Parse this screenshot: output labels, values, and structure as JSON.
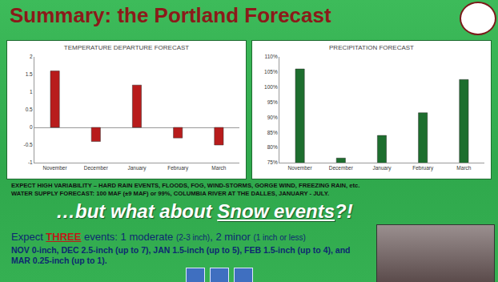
{
  "title": "Summary: the Portland Forecast",
  "chart_data": [
    {
      "type": "bar",
      "title": "TEMPERATURE DEPARTURE FORECAST",
      "categories": [
        "November",
        "December",
        "January",
        "February",
        "March"
      ],
      "values": [
        1.6,
        -0.4,
        1.2,
        -0.3,
        -0.5
      ],
      "color": "#b81c1c",
      "ylim": [
        -1,
        2
      ],
      "yticks": [
        -1,
        -0.5,
        0,
        0.5,
        1,
        1.5,
        2
      ],
      "grid": false
    },
    {
      "type": "bar",
      "title": "PRECIPITATION FORECAST",
      "categories": [
        "November",
        "December",
        "January",
        "February",
        "March"
      ],
      "values": [
        106,
        76.5,
        84,
        91.5,
        102.5
      ],
      "color": "#1d6e2e",
      "ylim": [
        75,
        110
      ],
      "yticks": [
        {
          "value": 75,
          "label": "75%"
        },
        {
          "value": 80,
          "label": "80%"
        },
        {
          "value": 85,
          "label": "85%"
        },
        {
          "value": 90,
          "label": "90%"
        },
        {
          "value": 95,
          "label": "95%"
        },
        {
          "value": 100,
          "label": "100%"
        },
        {
          "value": 105,
          "label": "105%"
        },
        {
          "value": 110,
          "label": "110%"
        }
      ],
      "grid": false
    }
  ],
  "notes": [
    "EXPECT HIGH VARIABILITY – HARD RAIN EVENTS, FLOODS, FOG, WIND-STORMS, GORGE WIND, FREEZING RAIN, etc.",
    "WATER SUPPLY FORECAST: 100 MAF (±9 MAF) or 99%, COLUMBIA RIVER AT THE DALLES, JANUARY - JULY."
  ],
  "headline": [
    "…but what about ",
    "Snow events",
    "?!"
  ],
  "expect": [
    "Expect ",
    "THREE",
    " events: 1 moderate ",
    "(2-3 inch)",
    ", 2 minor ",
    "(1 inch or less)"
  ],
  "detail": "NOV 0-inch, DEC 2.5-inch (up to 7), JAN 1.5-inch (up to 5), FEB 1.5-inch (up to 4), and MAR 0.25-inch (up to 1)."
}
